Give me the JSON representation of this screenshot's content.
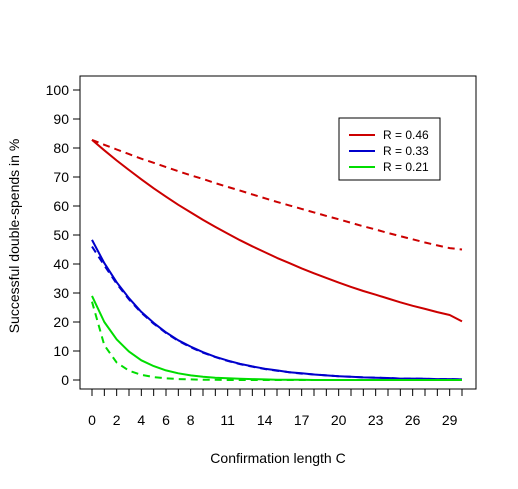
{
  "chart_data": {
    "type": "line",
    "title": "",
    "xlabel": "Confirmation length C",
    "ylabel": "Successful double-spends in %",
    "xlim": [
      0,
      30
    ],
    "ylim": [
      0,
      100
    ],
    "x_ticks": [
      0,
      1,
      2,
      3,
      4,
      5,
      6,
      7,
      8,
      9,
      10,
      11,
      12,
      13,
      14,
      15,
      16,
      17,
      18,
      19,
      20,
      21,
      22,
      23,
      24,
      25,
      26,
      27,
      28,
      29,
      30
    ],
    "x_tick_labels": [
      "0",
      "2",
      "4",
      "6",
      "8",
      "11",
      "14",
      "17",
      "20",
      "23",
      "26",
      "29"
    ],
    "x_tick_label_values": [
      0,
      2,
      4,
      6,
      8,
      11,
      14,
      17,
      20,
      23,
      26,
      29
    ],
    "y_ticks": [
      0,
      10,
      20,
      30,
      40,
      50,
      60,
      70,
      80,
      90,
      100
    ],
    "y_tick_labels": [
      "0",
      "10",
      "20",
      "30",
      "40",
      "50",
      "60",
      "70",
      "80",
      "90",
      "100"
    ],
    "grid": false,
    "legend": {
      "position": "top-right",
      "entries": [
        {
          "label": "R = 0.46",
          "color": "#cc0000"
        },
        {
          "label": "R = 0.33",
          "color": "#0000cc"
        },
        {
          "label": "R = 0.21",
          "color": "#00dd00"
        }
      ]
    },
    "x": [
      0,
      1,
      2,
      3,
      4,
      5,
      6,
      7,
      8,
      9,
      10,
      11,
      12,
      13,
      14,
      15,
      16,
      17,
      18,
      19,
      20,
      21,
      22,
      23,
      24,
      25,
      26,
      27,
      28,
      29,
      30
    ],
    "series": [
      {
        "name": "R = 0.46",
        "color": "#cc0000",
        "style": "solid",
        "values": [
          82.8,
          79.2,
          75.7,
          72.4,
          69.2,
          66.1,
          63.2,
          60.4,
          57.8,
          55.2,
          52.8,
          50.5,
          48.2,
          46.1,
          44.1,
          42.1,
          40.3,
          38.5,
          36.8,
          35.2,
          33.6,
          32.1,
          30.7,
          29.4,
          28.1,
          26.8,
          25.6,
          24.5,
          23.4,
          22.4,
          20.2
        ]
      },
      {
        "name": "R = 0.46 (dashed)",
        "color": "#cc0000",
        "style": "dashed",
        "values": [
          82.8,
          81.1,
          79.5,
          77.9,
          76.3,
          74.9,
          73.4,
          72.0,
          70.6,
          69.3,
          67.9,
          66.6,
          65.3,
          64.0,
          62.7,
          61.4,
          60.2,
          59.0,
          57.8,
          56.6,
          55.4,
          54.2,
          53.0,
          51.9,
          50.7,
          49.6,
          48.5,
          47.4,
          46.4,
          45.5,
          45.0
        ]
      },
      {
        "name": "R = 0.33",
        "color": "#0000cc",
        "style": "solid",
        "values": [
          48.3,
          40.3,
          33.7,
          28.2,
          23.5,
          19.7,
          16.4,
          13.7,
          11.5,
          9.6,
          8.0,
          6.7,
          5.6,
          4.7,
          3.9,
          3.3,
          2.7,
          2.3,
          1.9,
          1.6,
          1.3,
          1.1,
          0.9,
          0.8,
          0.7,
          0.5,
          0.5,
          0.4,
          0.3,
          0.3,
          0.2
        ]
      },
      {
        "name": "R = 0.33 (dashed)",
        "color": "#0000cc",
        "style": "dashed",
        "values": [
          46.0,
          39.5,
          33.2,
          27.8,
          23.2,
          19.4,
          16.2,
          13.5,
          11.3,
          9.4,
          7.9,
          6.6,
          5.5,
          4.6,
          3.8,
          3.2,
          2.7,
          2.2,
          1.9,
          1.6,
          1.3,
          1.1,
          0.9,
          0.8,
          0.7,
          0.5,
          0.5,
          0.4,
          0.3,
          0.3,
          0.2
        ]
      },
      {
        "name": "R = 0.21",
        "color": "#00dd00",
        "style": "solid",
        "values": [
          29.0,
          20.0,
          14.0,
          9.8,
          6.8,
          4.8,
          3.3,
          2.3,
          1.6,
          1.1,
          0.8,
          0.6,
          0.4,
          0.3,
          0.2,
          0.1,
          0.1,
          0.1,
          0.0,
          0.0,
          0.0,
          0.0,
          0.0,
          0.0,
          0.0,
          0.0,
          0.0,
          0.0,
          0.0,
          0.0,
          0.0
        ]
      },
      {
        "name": "R = 0.21 (dashed)",
        "color": "#00dd00",
        "style": "dashed",
        "values": [
          27.0,
          12.0,
          6.0,
          3.2,
          1.8,
          1.0,
          0.6,
          0.3,
          0.2,
          0.1,
          0.1,
          0.0,
          0.0,
          0.0,
          0.0,
          0.0,
          0.0,
          0.0,
          0.0,
          0.0,
          0.0,
          0.0,
          0.0,
          0.0,
          0.0,
          0.0,
          0.0,
          0.0,
          0.0,
          0.0,
          0.0
        ]
      }
    ]
  }
}
